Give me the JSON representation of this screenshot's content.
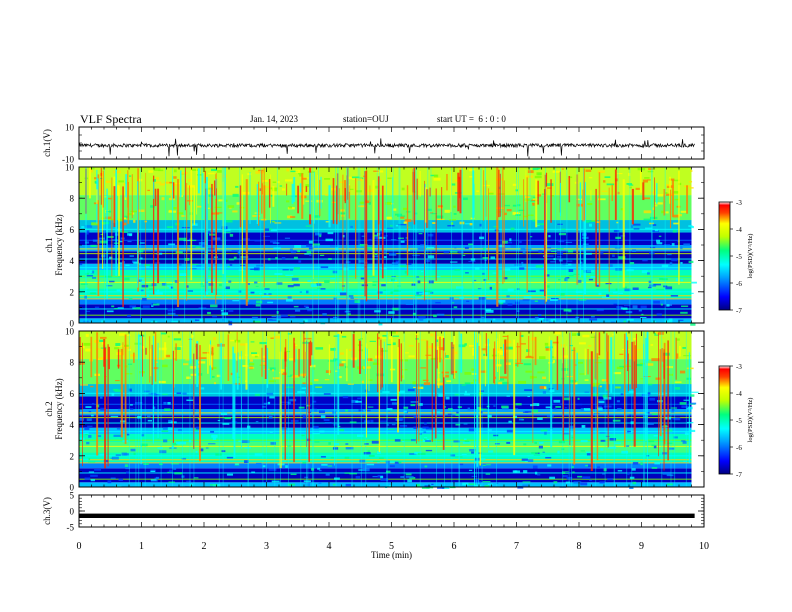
{
  "header": {
    "title": "VLF Spectra",
    "date": "Jan. 14, 2023",
    "station": "station=OUJ",
    "start": "start UT =  6 : 0 : 0"
  },
  "colors": {
    "waveform": "#000000",
    "colormap": [
      "#000080",
      "#0000ff",
      "#0080ff",
      "#00ffff",
      "#00ff80",
      "#80ff00",
      "#ffff00",
      "#ff8000",
      "#ff0000",
      "#ffffff"
    ]
  },
  "chart_data": [
    {
      "type": "line",
      "id": "ch1-waveform",
      "ylabel": "ch.1(V)",
      "ylim": [
        -10,
        10
      ],
      "yticks": [
        "10",
        "-10"
      ],
      "xlim": [
        0,
        10
      ],
      "description_level": -1.5,
      "series": [
        {
          "values_hint": "noise around -1 V with occasional negative spikes"
        }
      ]
    },
    {
      "type": "heatmap",
      "id": "ch1-spectrogram",
      "ylabel": [
        "ch.1",
        "Frequency  (kHz)"
      ],
      "ylim": [
        0,
        10
      ],
      "yticks": [
        "0",
        "2",
        "4",
        "6",
        "8",
        "10"
      ],
      "xlim": [
        0,
        9.8
      ],
      "colorbar": {
        "label": "log(PSD)(V²/Hz)",
        "range": [
          -7,
          -3
        ],
        "ticks": [
          "-3",
          "-4",
          "-5",
          "-6",
          "-7"
        ]
      }
    },
    {
      "type": "heatmap",
      "id": "ch2-spectrogram",
      "ylabel": [
        "ch.2",
        "Frequency  (kHz)"
      ],
      "ylim": [
        0,
        10
      ],
      "yticks": [
        "0",
        "2",
        "4",
        "6",
        "8",
        "10"
      ],
      "xlim": [
        0,
        9.8
      ],
      "colorbar": {
        "label": "log(PSD)(V²/Hz)",
        "range": [
          -7,
          -3
        ],
        "ticks": [
          "-3",
          "-4",
          "-5",
          "-6",
          "-7"
        ]
      }
    },
    {
      "type": "line",
      "id": "ch3-waveform",
      "ylabel": "ch.3(V)",
      "ylim": [
        -5,
        5
      ],
      "yticks": [
        "5",
        "0",
        "-5"
      ],
      "xlim": [
        0,
        10
      ],
      "series": [
        {
          "constant_value": -1.5
        }
      ]
    }
  ],
  "xaxis": {
    "label": "Time  (min)",
    "ticks": [
      "0",
      "1",
      "2",
      "3",
      "4",
      "5",
      "6",
      "7",
      "8",
      "9",
      "10"
    ]
  }
}
